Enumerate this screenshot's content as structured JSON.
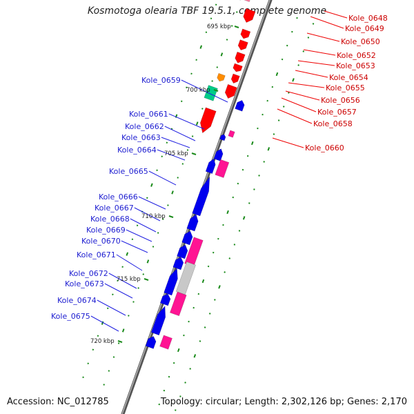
{
  "title": "Kosmotoga olearia TBF 19.5.1, complete genome",
  "accession": "Accession: NC_012785",
  "summary": "Topology: circular; Length: 2,302,126 bp; Genes: 2,170",
  "colors": {
    "backbone": "#7a7a7a",
    "forward_genes": "#ff0000",
    "reverse_genes": "#0000ee",
    "tick": "#1a8a1a",
    "magenta": "#ff1493",
    "orange": "#ff8c00",
    "teal": "#00cc88",
    "grey": "#c8c8c8"
  },
  "kbp_labels": [
    "695 kbp",
    "700 kbp",
    "705 kbp",
    "710 kbp",
    "715 kbp",
    "720 kbp"
  ],
  "right_labels": [
    "Kole_0648",
    "Kole_0649",
    "Kole_0650",
    "Kole_0652",
    "Kole_0653",
    "Kole_0654",
    "Kole_0655",
    "Kole_0656",
    "Kole_0657",
    "Kole_0658",
    "Kole_0660"
  ],
  "left_labels": [
    "Kole_0659",
    "Kole_0661",
    "Kole_0662",
    "Kole_0663",
    "Kole_0664",
    "Kole_0665",
    "Kole_0666",
    "Kole_0667",
    "Kole_0668",
    "Kole_0669",
    "Kole_0670",
    "Kole_0671",
    "Kole_0672",
    "Kole_0673",
    "Kole_0674",
    "Kole_0675"
  ]
}
